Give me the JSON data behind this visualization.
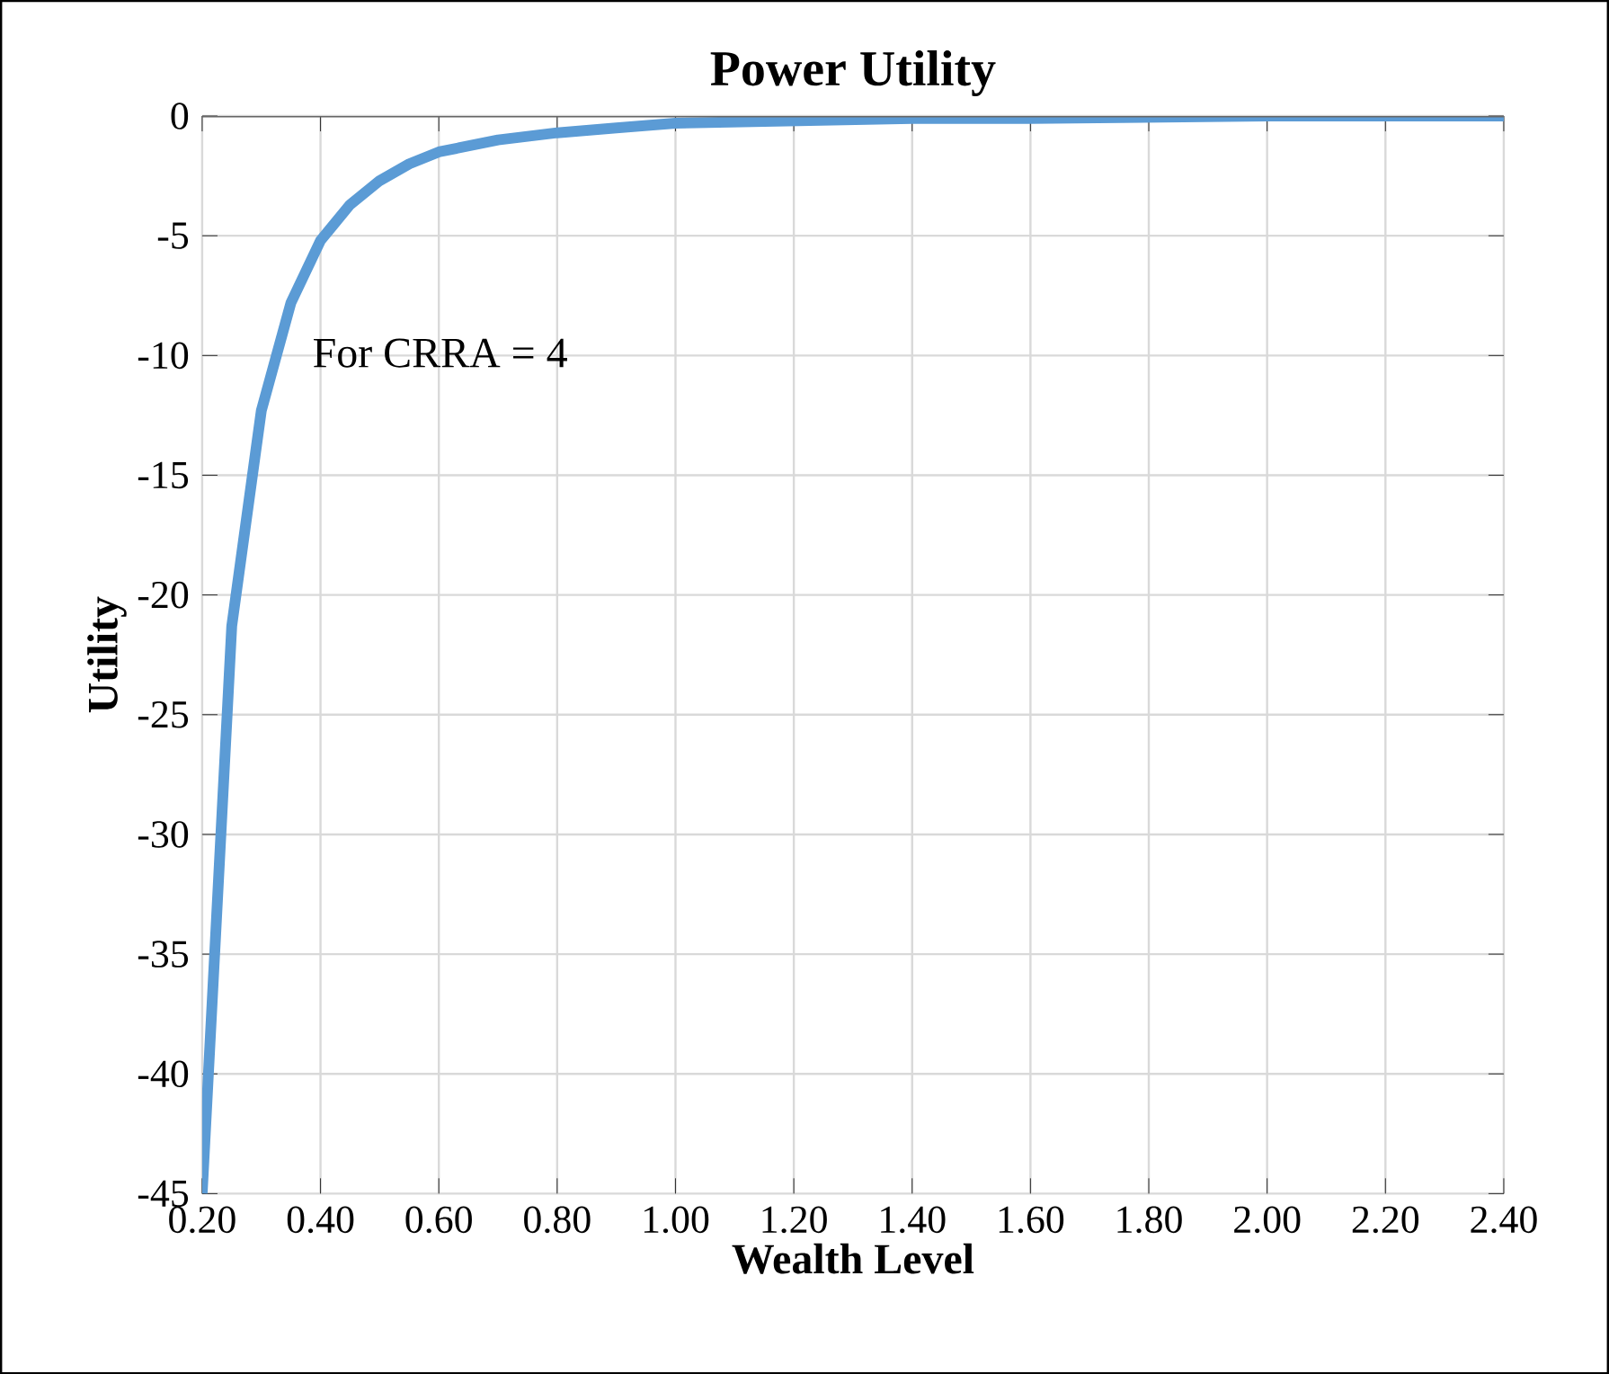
{
  "chart_data": {
    "type": "line",
    "title": "Power Utility",
    "xlabel": "Wealth Level",
    "ylabel": "Utility",
    "x": [
      0.2,
      0.25,
      0.3,
      0.35,
      0.4,
      0.45,
      0.5,
      0.55,
      0.6,
      0.7,
      0.8,
      0.9,
      1.0,
      1.2,
      1.4,
      1.6,
      2.0,
      2.4
    ],
    "series": [
      {
        "color": "#5b9bd5",
        "values": [
          -45,
          -21.3,
          -12.3,
          -7.8,
          -5.2,
          -3.7,
          -2.7,
          -2.0,
          -1.5,
          -1.0,
          -0.7,
          -0.5,
          -0.3,
          -0.2,
          -0.1,
          -0.1,
          0,
          0
        ]
      }
    ],
    "xlim": [
      0.2,
      2.4
    ],
    "xticks": [
      {
        "value": 0.2,
        "label": "0.20"
      },
      {
        "value": 0.4,
        "label": "0.40"
      },
      {
        "value": 0.6,
        "label": "0.60"
      },
      {
        "value": 0.8,
        "label": "0.80"
      },
      {
        "value": 1.0,
        "label": "1.00"
      },
      {
        "value": 1.2,
        "label": "1.20"
      },
      {
        "value": 1.4,
        "label": "1.40"
      },
      {
        "value": 1.6,
        "label": "1.60"
      },
      {
        "value": 1.8,
        "label": "1.80"
      },
      {
        "value": 2.0,
        "label": "2.00"
      },
      {
        "value": 2.2,
        "label": "2.20"
      },
      {
        "value": 2.4,
        "label": "2.40"
      }
    ],
    "ylim": [
      -45,
      0
    ],
    "yticks": [
      -45,
      -40,
      -35,
      -30,
      -25,
      -20,
      -15,
      -10,
      -5,
      0
    ],
    "grid": true,
    "annotations": [
      "For CRRA = 4"
    ]
  }
}
